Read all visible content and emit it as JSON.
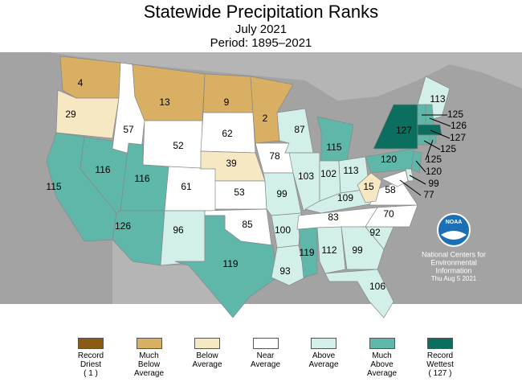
{
  "header": {
    "title": "Statewide Precipitation Ranks",
    "subtitle": "July 2021",
    "period": "Period: 1895–2021"
  },
  "states": [
    {
      "rank": 4,
      "color": "#d9b063"
    },
    {
      "rank": 29,
      "color": "#f6e8c3"
    },
    {
      "rank": 115,
      "color": "#5fb7a9"
    },
    {
      "rank": 116,
      "color": "#5fb7a9"
    },
    {
      "rank": 57,
      "color": "#ffffff"
    },
    {
      "rank": 13,
      "color": "#d9b063"
    },
    {
      "rank": 52,
      "color": "#ffffff"
    },
    {
      "rank": 116,
      "color": "#5fb7a9"
    },
    {
      "rank": 61,
      "color": "#ffffff"
    },
    {
      "rank": 126,
      "color": "#5fb7a9"
    },
    {
      "rank": 96,
      "color": "#d3efe9"
    },
    {
      "rank": 9,
      "color": "#d9b063"
    },
    {
      "rank": 62,
      "color": "#ffffff"
    },
    {
      "rank": 39,
      "color": "#f6e8c3"
    },
    {
      "rank": 53,
      "color": "#ffffff"
    },
    {
      "rank": 85,
      "color": "#ffffff"
    },
    {
      "rank": 119,
      "color": "#5fb7a9"
    },
    {
      "rank": 2,
      "color": "#d9b063"
    },
    {
      "rank": 78,
      "color": "#ffffff"
    },
    {
      "rank": 99,
      "color": "#d3efe9"
    },
    {
      "rank": 100,
      "color": "#d3efe9"
    },
    {
      "rank": 93,
      "color": "#d3efe9"
    },
    {
      "rank": 87,
      "color": "#d3efe9"
    },
    {
      "rank": 103,
      "color": "#d3efe9"
    },
    {
      "rank": 115,
      "color": "#5fb7a9"
    },
    {
      "rank": 102,
      "color": "#d3efe9"
    },
    {
      "rank": 113,
      "color": "#d3efe9"
    },
    {
      "rank": 109,
      "color": "#d3efe9"
    },
    {
      "rank": 83,
      "color": "#ffffff"
    },
    {
      "rank": 119,
      "color": "#5fb7a9"
    },
    {
      "rank": 112,
      "color": "#d3efe9"
    },
    {
      "rank": 99,
      "color": "#d3efe9"
    },
    {
      "rank": 106,
      "color": "#d3efe9"
    },
    {
      "rank": 92,
      "color": "#d3efe9"
    },
    {
      "rank": 70,
      "color": "#ffffff"
    },
    {
      "rank": 58,
      "color": "#ffffff"
    },
    {
      "rank": 15,
      "color": "#f6e8c3"
    },
    {
      "rank": 120,
      "color": "#5fb7a9"
    },
    {
      "rank": 127,
      "color": "#0c6e5e"
    },
    {
      "rank": 113,
      "color": "#d3efe9"
    },
    {
      "rank": 125,
      "color": "#5fb7a9"
    },
    {
      "rank": 126,
      "color": "#5fb7a9"
    },
    {
      "rank": 127,
      "color": "#0c6e5e"
    },
    {
      "rank": 125,
      "color": "#5fb7a9"
    },
    {
      "rank": 125,
      "color": "#5fb7a9"
    },
    {
      "rank": 120,
      "color": "#5fb7a9"
    },
    {
      "rank": 99,
      "color": "#d3efe9"
    },
    {
      "rank": 77,
      "color": "#ffffff"
    }
  ],
  "legend": [
    {
      "label": "Record Driest",
      "note": "( 1 )",
      "color": "#8b5a14"
    },
    {
      "label": "Much Below Average",
      "color": "#d9b063"
    },
    {
      "label": "Below Average",
      "color": "#f6e8c3"
    },
    {
      "label": "Near Average",
      "color": "#ffffff"
    },
    {
      "label": "Above Average",
      "color": "#d3efe9"
    },
    {
      "label": "Much Above Average",
      "color": "#5fb7a9"
    },
    {
      "label": "Record Wettest",
      "note": "( 127 )",
      "color": "#0c6e5e"
    }
  ],
  "logo": "NOAA",
  "credit": [
    "National Centers for",
    "Environmental",
    "Information",
    "Thu Aug  5 2021"
  ]
}
